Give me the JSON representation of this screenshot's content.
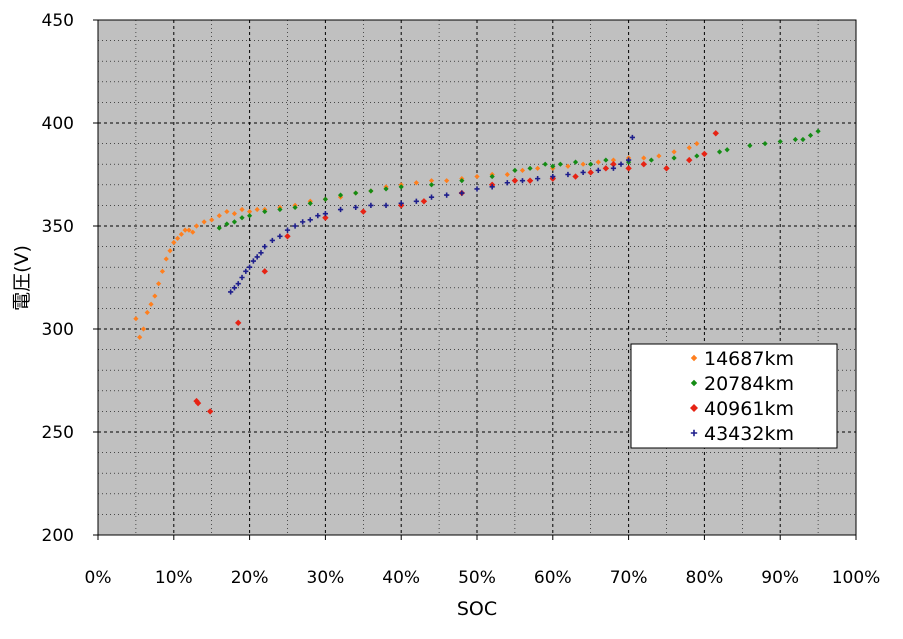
{
  "chart_data": {
    "type": "scatter",
    "xlabel": "SOC",
    "ylabel": "電圧(V)",
    "xlim": [
      0,
      100
    ],
    "ylim": [
      200,
      450
    ],
    "x_ticks": [
      "0%",
      "10%",
      "20%",
      "30%",
      "40%",
      "50%",
      "60%",
      "70%",
      "80%",
      "90%",
      "100%"
    ],
    "y_ticks": [
      "200",
      "250",
      "300",
      "350",
      "400",
      "450"
    ],
    "grid": true,
    "legend_position": "right",
    "series": [
      {
        "name": "14687km",
        "color": "#ff7f1e",
        "marker": "diamond",
        "x": [
          5,
          5.5,
          6,
          6.5,
          7,
          7.5,
          8,
          8.5,
          9,
          9.5,
          10,
          10.5,
          11,
          11.5,
          12,
          12.5,
          13,
          14,
          15,
          16,
          17,
          18,
          19,
          20,
          21,
          22,
          24,
          26,
          28,
          30,
          32,
          34,
          36,
          38,
          40,
          42,
          44,
          46,
          48,
          50,
          52,
          54,
          56,
          58,
          60,
          62,
          64,
          66,
          68,
          70,
          72,
          74,
          76,
          78,
          79
        ],
        "y": [
          305,
          296,
          300,
          308,
          312,
          316,
          322,
          328,
          334,
          338,
          342,
          344,
          346,
          348,
          348,
          347,
          350,
          352,
          353,
          355,
          357,
          356,
          358,
          357,
          358,
          358,
          359,
          360,
          362,
          363,
          364,
          366,
          367,
          369,
          370,
          371,
          372,
          372,
          373,
          374,
          375,
          375,
          377,
          378,
          378,
          379,
          380,
          381,
          382,
          383,
          383,
          384,
          386,
          388,
          390
        ]
      },
      {
        "name": "20784km",
        "color": "#148c14",
        "marker": "diamond",
        "x": [
          16,
          17,
          18,
          19,
          20,
          22,
          24,
          26,
          28,
          30,
          32,
          34,
          36,
          38,
          40,
          44,
          48,
          52,
          55,
          57,
          59,
          60,
          61,
          63,
          65,
          67,
          70,
          73,
          76,
          79,
          82,
          83,
          86,
          88,
          90,
          92,
          93,
          94,
          95
        ],
        "y": [
          349,
          351,
          352,
          354,
          355,
          357,
          358,
          359,
          361,
          363,
          365,
          366,
          367,
          368,
          369,
          370,
          372,
          374,
          377,
          378,
          380,
          379,
          380,
          381,
          380,
          382,
          381,
          382,
          383,
          384,
          386,
          387,
          389,
          390,
          391,
          392,
          392,
          394,
          396
        ]
      },
      {
        "name": "40961km",
        "color": "#e62314",
        "marker": "diamond",
        "x": [
          13,
          13.2,
          14.8,
          18.5,
          22,
          25,
          30,
          35,
          40,
          43,
          48,
          52,
          55,
          57,
          60,
          63,
          65,
          67,
          68,
          70,
          72,
          75,
          78,
          80,
          81.5
        ],
        "y": [
          265,
          264,
          260,
          303,
          328,
          345,
          354,
          357,
          360,
          362,
          366,
          370,
          372,
          372,
          373,
          374,
          376,
          378,
          380,
          378,
          380,
          378,
          382,
          385,
          395
        ]
      },
      {
        "name": "43432km",
        "color": "#1e1e8c",
        "marker": "plus",
        "x": [
          17.5,
          18,
          18.5,
          19,
          19.5,
          20,
          20.5,
          21,
          21.5,
          22,
          23,
          24,
          25,
          26,
          27,
          28,
          29,
          30,
          32,
          34,
          36,
          38,
          40,
          42,
          44,
          46,
          48,
          50,
          52,
          54,
          56,
          58,
          60,
          62,
          64,
          66,
          68,
          69,
          70,
          70.5
        ],
        "y": [
          318,
          320,
          322,
          325,
          328,
          330,
          333,
          335,
          337,
          340,
          343,
          345,
          348,
          350,
          352,
          353,
          355,
          356,
          358,
          359,
          360,
          360,
          361,
          362,
          364,
          365,
          366,
          368,
          369,
          371,
          372,
          373,
          374,
          375,
          376,
          377,
          378,
          380,
          382,
          393
        ]
      }
    ]
  }
}
